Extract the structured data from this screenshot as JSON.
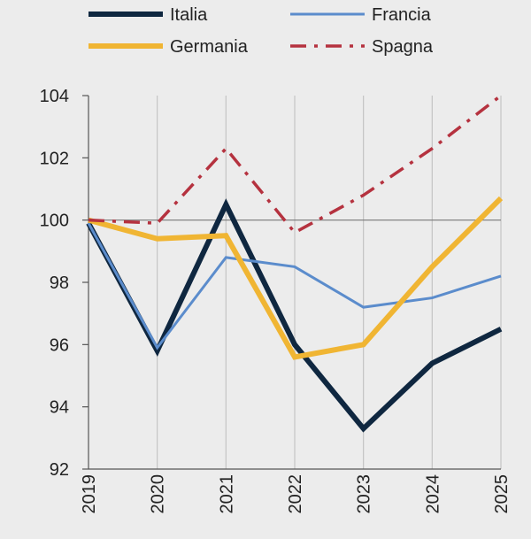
{
  "chart_data": {
    "type": "line",
    "title": "",
    "xlabel": "",
    "ylabel": "",
    "categories": [
      "2019",
      "2020",
      "2021",
      "2022",
      "2023",
      "2024",
      "2025"
    ],
    "ylim": [
      92,
      104
    ],
    "yticks": [
      92,
      94,
      96,
      98,
      100,
      102,
      104
    ],
    "grid": "vertical",
    "reference_line": 100,
    "legend_position": "top",
    "series": [
      {
        "name": "Italia",
        "color": "#0f2740",
        "style": "solid",
        "values": [
          99.9,
          95.8,
          100.5,
          96.0,
          93.3,
          95.4,
          96.5
        ]
      },
      {
        "name": "Francia",
        "color": "#5b8ccc",
        "style": "solid",
        "values": [
          99.9,
          95.9,
          98.8,
          98.5,
          97.2,
          97.5,
          98.2
        ]
      },
      {
        "name": "Germania",
        "color": "#f0b533",
        "style": "solid",
        "values": [
          100.0,
          99.4,
          99.5,
          95.6,
          96.0,
          98.5,
          100.7
        ]
      },
      {
        "name": "Spagna",
        "color": "#b5323f",
        "style": "dash-dot",
        "values": [
          100.0,
          99.9,
          102.3,
          99.6,
          100.8,
          102.3,
          104.0
        ]
      }
    ]
  }
}
